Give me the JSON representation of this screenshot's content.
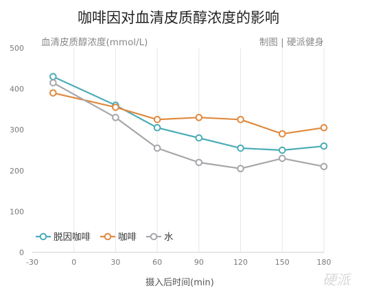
{
  "chart_data": {
    "type": "line",
    "title": "咖啡因对血清皮质醇浓度的影响",
    "ylabel": "血清皮质醇浓度(mmol/L)",
    "xlabel": "摄入后时间(min)",
    "credit": "制图 | 硬派健身",
    "watermark": "硬派",
    "xlim": [
      -30,
      180
    ],
    "ylim": [
      0,
      500
    ],
    "x_ticks": [
      -30,
      0,
      30,
      60,
      90,
      120,
      150,
      180
    ],
    "y_ticks": [
      0,
      100,
      200,
      300,
      400,
      500
    ],
    "grid": {
      "vertical": true,
      "horizontal": false
    },
    "legend_position": "bottom-left",
    "x": [
      -15,
      30,
      60,
      90,
      120,
      150,
      180
    ],
    "series": [
      {
        "name": "脱因咖啡",
        "color": "#4aacb7",
        "values": [
          430,
          360,
          305,
          280,
          255,
          250,
          260
        ]
      },
      {
        "name": "咖啡",
        "color": "#e0893d",
        "values": [
          390,
          355,
          325,
          330,
          325,
          290,
          305
        ]
      },
      {
        "name": "水",
        "color": "#a6a6ab",
        "values": [
          415,
          330,
          255,
          220,
          205,
          230,
          210
        ]
      }
    ]
  }
}
